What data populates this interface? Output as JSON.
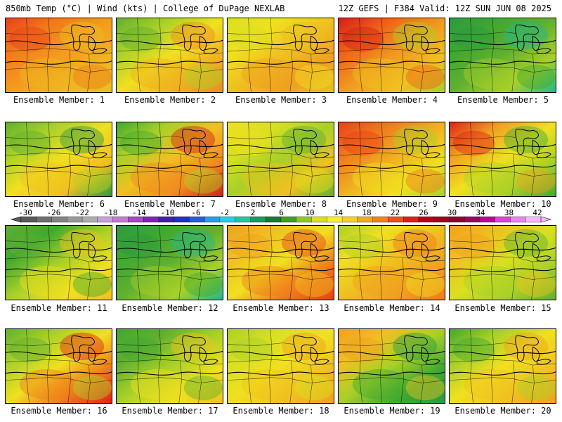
{
  "header": {
    "left": "850mb Temp (°C) | Wind (kts) | College of DuPage NEXLAB",
    "right": "12Z GEFS | F384 Valid: 12Z SUN JUN 08 2025"
  },
  "colorbar": {
    "labels": [
      "-30",
      "-26",
      "-22",
      "-18",
      "-14",
      "-10",
      "-6",
      "-2",
      "2",
      "6",
      "10",
      "14",
      "18",
      "22",
      "26",
      "30",
      "34",
      "38",
      "42"
    ],
    "colors": [
      "#5a5a5a",
      "#6e6e6e",
      "#838383",
      "#989898",
      "#acacac",
      "#c8a0d8",
      "#d070e0",
      "#b040d0",
      "#8020c0",
      "#4020b0",
      "#2030c8",
      "#2060e0",
      "#20a0f0",
      "#20d0e8",
      "#20c8a0",
      "#10a060",
      "#108030",
      "#40a020",
      "#90c820",
      "#d8e020",
      "#f8f020",
      "#f8d020",
      "#f8a818",
      "#f88010",
      "#f05010",
      "#e02010",
      "#c00010",
      "#a00020",
      "#900030",
      "#a00060",
      "#c000a0",
      "#e040e0",
      "#f080f0",
      "#f8b8f8"
    ]
  },
  "panels": [
    {
      "label": "Ensemble Member: 1",
      "colors": [
        "#e8401a",
        "#f07a1c",
        "#f49a1e",
        "#f0b520",
        "#e8c020"
      ]
    },
    {
      "label": "Ensemble Member: 2",
      "colors": [
        "#60b030",
        "#a8d028",
        "#f0e020",
        "#f0b020",
        "#f08a1e"
      ]
    },
    {
      "label": "Ensemble Member: 3",
      "colors": [
        "#d8e020",
        "#f0e020",
        "#f0c020",
        "#f0a020",
        "#e8c020"
      ]
    },
    {
      "label": "Ensemble Member: 4",
      "colors": [
        "#d02018",
        "#f06018",
        "#f09820",
        "#f0c020",
        "#a8d028"
      ]
    },
    {
      "label": "Ensemble Member: 5",
      "colors": [
        "#2a9a40",
        "#40a830",
        "#60b030",
        "#a8d028",
        "#20b890"
      ]
    },
    {
      "label": "Ensemble Member: 6",
      "colors": [
        "#60b030",
        "#a8d028",
        "#f0e020",
        "#f0c020",
        "#2a9a40"
      ]
    },
    {
      "label": "Ensemble Member: 7",
      "colors": [
        "#40a830",
        "#a8d028",
        "#f0c020",
        "#f08a1e",
        "#d02018"
      ]
    },
    {
      "label": "Ensemble Member: 8",
      "colors": [
        "#f0e020",
        "#d8e020",
        "#a8d028",
        "#f0c020",
        "#60b030"
      ]
    },
    {
      "label": "Ensemble Member: 9",
      "colors": [
        "#e8401a",
        "#f07a1c",
        "#f0b020",
        "#f0e020",
        "#a8d028"
      ]
    },
    {
      "label": "Ensemble Member: 10",
      "colors": [
        "#e02018",
        "#f0a020",
        "#f0e020",
        "#a8d028",
        "#40a830"
      ]
    },
    {
      "label": "Ensemble Member: 11",
      "colors": [
        "#60b030",
        "#40a830",
        "#a8d028",
        "#f0e020",
        "#f0c020"
      ]
    },
    {
      "label": "Ensemble Member: 12",
      "colors": [
        "#2a9a40",
        "#40a830",
        "#60b030",
        "#a8d028",
        "#20b890"
      ]
    },
    {
      "label": "Ensemble Member: 13",
      "colors": [
        "#f0a020",
        "#f0c020",
        "#f0e020",
        "#f07a1c",
        "#e8401a"
      ]
    },
    {
      "label": "Ensemble Member: 14",
      "colors": [
        "#a8d028",
        "#f0e020",
        "#f0c020",
        "#f0a020",
        "#f07a1c"
      ]
    },
    {
      "label": "Ensemble Member: 15",
      "colors": [
        "#f0a020",
        "#f0c020",
        "#d8e020",
        "#a8d028",
        "#60b030"
      ]
    },
    {
      "label": "Ensemble Member: 16",
      "colors": [
        "#60b030",
        "#a8d028",
        "#f0e020",
        "#f07a1c",
        "#e02018"
      ]
    },
    {
      "label": "Ensemble Member: 17",
      "colors": [
        "#40a830",
        "#60b030",
        "#a8d028",
        "#f0e020",
        "#f0c020"
      ]
    },
    {
      "label": "Ensemble Member: 18",
      "colors": [
        "#a8d028",
        "#d8e020",
        "#f0e020",
        "#f0c020",
        "#f0a020"
      ]
    },
    {
      "label": "Ensemble Member: 19",
      "colors": [
        "#f0a020",
        "#f0c020",
        "#a8d028",
        "#40a830",
        "#2a9a40"
      ]
    },
    {
      "label": "Ensemble Member: 20",
      "colors": [
        "#40a830",
        "#a8d028",
        "#f0e020",
        "#f0c020",
        "#f0a020"
      ]
    }
  ]
}
